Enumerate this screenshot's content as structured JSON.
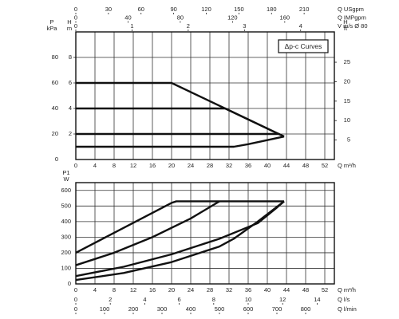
{
  "chart_data": [
    {
      "type": "line",
      "color": "#111111",
      "grid": true,
      "annotation": "Δp-c Curves",
      "xlabel": "Q m³/h",
      "xlim": [
        0,
        54
      ],
      "xticks": [
        0,
        4,
        8,
        12,
        16,
        20,
        24,
        28,
        32,
        36,
        40,
        44,
        48,
        52
      ],
      "top_axes": [
        {
          "label": "Q USgpm",
          "xlim": [
            0,
            237.8
          ],
          "xticks": [
            0,
            30,
            60,
            90,
            120,
            150,
            180,
            210
          ]
        },
        {
          "label": "Q IMPgpm",
          "xlim": [
            0,
            198
          ],
          "xticks": [
            0,
            40,
            80,
            120,
            160
          ]
        },
        {
          "label": "V m/s Ø 80",
          "xlim": [
            0,
            4.6
          ],
          "xticks": [
            0,
            1,
            2,
            3,
            4
          ]
        }
      ],
      "ylabel": "P kPa",
      "ylim": [
        0,
        100
      ],
      "yticks": [
        0,
        20,
        40,
        60,
        80
      ],
      "y2label": "H m",
      "y2lim": [
        0,
        10
      ],
      "y2ticks": [
        2,
        4,
        6,
        8
      ],
      "y3label": "H ft",
      "y3lim": [
        0,
        32.8
      ],
      "y3ticks": [
        5,
        10,
        15,
        20,
        25
      ],
      "series": [
        {
          "axis": "y2",
          "x": [
            0,
            20,
            43.5
          ],
          "values": [
            6,
            6,
            1.8
          ]
        },
        {
          "axis": "y2",
          "x": [
            0,
            31.2,
            43.5
          ],
          "values": [
            4,
            4,
            1.8
          ]
        },
        {
          "axis": "y2",
          "x": [
            0,
            42.4,
            43.5
          ],
          "values": [
            2,
            2,
            1.8
          ]
        },
        {
          "axis": "y2",
          "x": [
            0,
            33,
            36,
            43.5
          ],
          "values": [
            1,
            1,
            1.2,
            1.8
          ]
        }
      ]
    },
    {
      "type": "line",
      "color": "#111111",
      "grid": true,
      "xlabel": "Q m³/h",
      "xlim": [
        0,
        54
      ],
      "xticks": [
        0,
        4,
        8,
        12,
        16,
        20,
        24,
        28,
        32,
        36,
        40,
        44,
        48,
        52
      ],
      "bottom_axes": [
        {
          "label": "Q l/s",
          "xlim": [
            0,
            15
          ],
          "xticks": [
            0,
            2,
            4,
            6,
            8,
            10,
            12,
            14
          ]
        },
        {
          "label": "Q l/min",
          "xlim": [
            0,
            900
          ],
          "xticks": [
            0,
            100,
            200,
            300,
            400,
            500,
            600,
            700,
            800
          ]
        }
      ],
      "ylabel": "P1 W",
      "ylim": [
        0,
        650
      ],
      "yticks": [
        0,
        100,
        200,
        300,
        400,
        500,
        600
      ],
      "series": [
        {
          "x": [
            0,
            10,
            20,
            21,
            43.5
          ],
          "values": [
            200,
            360,
            520,
            530,
            530
          ]
        },
        {
          "x": [
            0,
            8,
            16,
            24,
            30
          ],
          "values": [
            120,
            200,
            300,
            420,
            530
          ]
        },
        {
          "x": [
            0,
            10,
            20,
            30,
            38,
            42,
            43.5
          ],
          "values": [
            50,
            110,
            190,
            290,
            390,
            490,
            530
          ]
        },
        {
          "x": [
            0,
            10,
            20,
            30,
            33,
            38,
            43.5
          ],
          "values": [
            25,
            70,
            140,
            240,
            290,
            400,
            530
          ]
        }
      ]
    }
  ]
}
